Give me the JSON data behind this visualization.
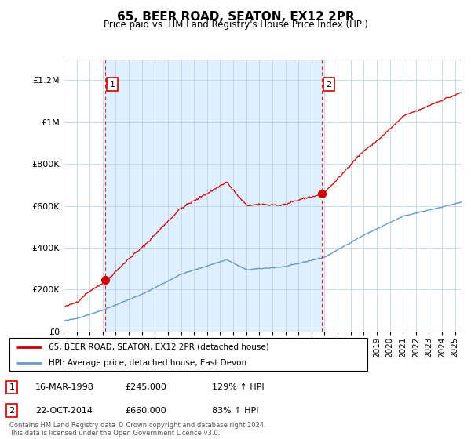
{
  "title": "65, BEER ROAD, SEATON, EX12 2PR",
  "subtitle": "Price paid vs. HM Land Registry's House Price Index (HPI)",
  "legend_line1": "65, BEER ROAD, SEATON, EX12 2PR (detached house)",
  "legend_line2": "HPI: Average price, detached house, East Devon",
  "annotation1_date": "16-MAR-1998",
  "annotation1_price": "£245,000",
  "annotation1_hpi": "129% ↑ HPI",
  "annotation2_date": "22-OCT-2014",
  "annotation2_price": "£660,000",
  "annotation2_hpi": "83% ↑ HPI",
  "footer": "Contains HM Land Registry data © Crown copyright and database right 2024.\nThis data is licensed under the Open Government Licence v3.0.",
  "sale1_year": 1998.21,
  "sale1_price": 245000,
  "sale2_year": 2014.81,
  "sale2_price": 660000,
  "red_color": "#cc0000",
  "blue_color": "#6699cc",
  "bg_fill_color": "#ddeeff",
  "ylim_max": 1300000,
  "ylim_min": 0,
  "xlim_min": 1995.0,
  "xlim_max": 2025.5
}
